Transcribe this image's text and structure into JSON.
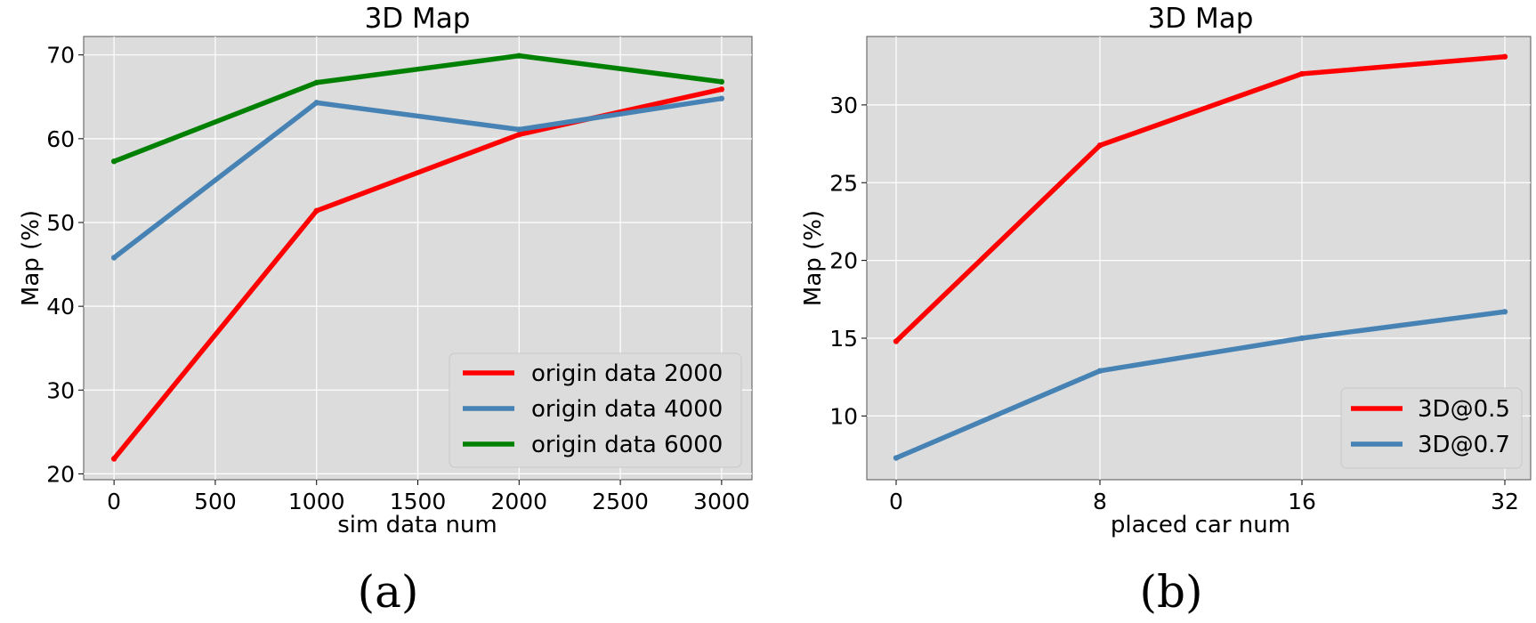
{
  "chart_data": [
    {
      "type": "line",
      "title": "3D Map",
      "xlabel": "sim data num",
      "ylabel": "Map (%)",
      "caption": "(a)",
      "x": [
        0,
        1000,
        2000,
        3000
      ],
      "xlim": [
        -150,
        3150
      ],
      "ylim": [
        19.3,
        72.2
      ],
      "xticks": [
        0,
        500,
        1000,
        1500,
        2000,
        2500,
        3000
      ],
      "yticks": [
        20,
        30,
        40,
        50,
        60,
        70
      ],
      "grid": true,
      "legend_position": "lower-right",
      "series": [
        {
          "name": "origin data 2000",
          "color": "#ff0000",
          "values": [
            21.8,
            51.4,
            60.5,
            65.9
          ]
        },
        {
          "name": "origin data 4000",
          "color": "#4682b4",
          "values": [
            45.8,
            64.3,
            61.1,
            64.8
          ]
        },
        {
          "name": "origin data 6000",
          "color": "#008000",
          "values": [
            57.3,
            66.7,
            69.9,
            66.8
          ]
        }
      ]
    },
    {
      "type": "line",
      "title": "3D Map",
      "xlabel": "placed car num",
      "ylabel": "Map (%)",
      "caption": "(b)",
      "x": [
        0,
        8,
        16,
        32
      ],
      "xticks": [
        0,
        8,
        16,
        32
      ],
      "xscale": "categorical-positions",
      "ylim": [
        5.9,
        34.4
      ],
      "yticks": [
        10,
        15,
        20,
        25,
        30
      ],
      "grid": true,
      "legend_position": "lower-right",
      "series": [
        {
          "name": "3D@0.5",
          "color": "#ff0000",
          "values": [
            14.8,
            27.4,
            32.0,
            33.1
          ]
        },
        {
          "name": "3D@0.7",
          "color": "#4682b4",
          "values": [
            7.3,
            12.9,
            15.0,
            16.7
          ]
        }
      ]
    }
  ]
}
